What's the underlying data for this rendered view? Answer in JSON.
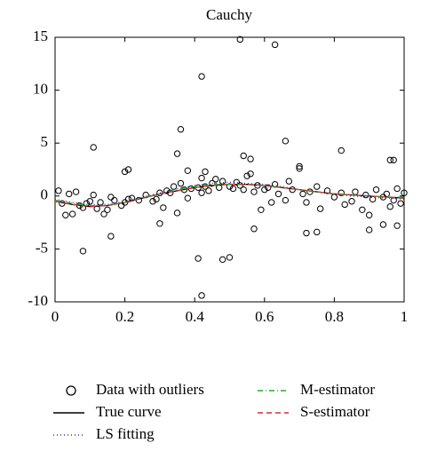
{
  "chart_data": {
    "type": "scatter",
    "title": "Cauchy",
    "xlim": [
      0,
      1
    ],
    "xticks": [
      0,
      0.2,
      0.4,
      0.6,
      0.8,
      1
    ],
    "ylim": [
      -10,
      15
    ],
    "yticks": [
      -10,
      -5,
      0,
      5,
      10,
      15
    ],
    "series": [
      {
        "name": "Data with outliers",
        "kind": "points",
        "color": "#000000",
        "x": [
          0.01,
          0.02,
          0.03,
          0.04,
          0.05,
          0.06,
          0.07,
          0.08,
          0.09,
          0.1,
          0.11,
          0.12,
          0.13,
          0.14,
          0.15,
          0.16,
          0.17,
          0.19,
          0.2,
          0.21,
          0.22,
          0.24,
          0.26,
          0.28,
          0.29,
          0.3,
          0.31,
          0.32,
          0.33,
          0.34,
          0.35,
          0.36,
          0.37,
          0.38,
          0.39,
          0.41,
          0.42,
          0.42,
          0.43,
          0.44,
          0.45,
          0.46,
          0.47,
          0.48,
          0.5,
          0.51,
          0.52,
          0.53,
          0.54,
          0.55,
          0.56,
          0.57,
          0.58,
          0.59,
          0.6,
          0.61,
          0.62,
          0.63,
          0.64,
          0.66,
          0.67,
          0.68,
          0.7,
          0.71,
          0.72,
          0.73,
          0.75,
          0.76,
          0.78,
          0.8,
          0.82,
          0.83,
          0.85,
          0.86,
          0.88,
          0.89,
          0.9,
          0.91,
          0.92,
          0.94,
          0.95,
          0.96,
          0.97,
          0.98,
          0.99,
          1.0,
          0.08,
          0.11,
          0.16,
          0.2,
          0.21,
          0.3,
          0.35,
          0.36,
          0.38,
          0.41,
          0.42,
          0.42,
          0.43,
          0.48,
          0.5,
          0.53,
          0.54,
          0.56,
          0.57,
          0.63,
          0.66,
          0.7,
          0.72,
          0.75,
          0.82,
          0.9,
          0.94,
          0.96,
          0.97,
          0.98
        ],
        "values": [
          0.5,
          -0.7,
          -1.8,
          0.2,
          -1.7,
          0.4,
          -0.9,
          -1.1,
          -0.7,
          -0.5,
          0.1,
          -1.2,
          -0.6,
          -1.7,
          -1.3,
          -0.1,
          -0.4,
          -0.9,
          -0.6,
          -0.3,
          -0.2,
          -0.4,
          0.1,
          -0.5,
          -0.3,
          0.3,
          -1.1,
          0.5,
          0.3,
          0.9,
          -1.6,
          1.2,
          0.6,
          -0.2,
          0.7,
          0.8,
          1.7,
          0.3,
          0.9,
          0.5,
          1.2,
          1.6,
          0.8,
          1.4,
          0.9,
          0.7,
          1.3,
          1.0,
          0.6,
          1.9,
          2.1,
          0.4,
          1.0,
          -1.3,
          0.6,
          0.8,
          -0.6,
          1.1,
          0.2,
          -0.4,
          1.4,
          0.6,
          2.6,
          0.2,
          -0.6,
          0.4,
          0.9,
          -1.2,
          0.5,
          -0.1,
          0.3,
          -0.8,
          -0.5,
          0.4,
          -1.3,
          0.1,
          -1.8,
          -0.3,
          0.6,
          -0.1,
          0.2,
          -1.0,
          -0.4,
          0.7,
          -0.7,
          0.3,
          -5.2,
          4.6,
          -3.8,
          2.3,
          2.5,
          -2.6,
          4.0,
          6.3,
          2.4,
          -5.9,
          11.3,
          -9.4,
          2.3,
          -6.0,
          -5.8,
          14.8,
          3.8,
          3.5,
          -3.1,
          14.3,
          5.2,
          2.8,
          -3.5,
          -3.4,
          4.3,
          -3.2,
          -2.7,
          3.4,
          3.4,
          -2.8
        ]
      },
      {
        "name": "True curve",
        "kind": "line",
        "color": "#000000",
        "dash": "",
        "x": [
          0,
          0.05,
          0.1,
          0.15,
          0.2,
          0.25,
          0.3,
          0.35,
          0.4,
          0.45,
          0.5,
          0.55,
          0.6,
          0.65,
          0.7,
          0.75,
          0.8,
          0.85,
          0.9,
          0.95,
          1
        ],
        "values": [
          -0.5,
          -0.8,
          -1.0,
          -0.9,
          -0.6,
          -0.2,
          0.2,
          0.5,
          0.8,
          1.0,
          1.1,
          1.1,
          1.0,
          0.8,
          0.6,
          0.4,
          0.2,
          0.1,
          0.0,
          -0.1,
          -0.2
        ]
      },
      {
        "name": "LS fitting",
        "kind": "line",
        "color": "#3030c0",
        "dash": "1,3",
        "x": [
          0,
          0.05,
          0.1,
          0.15,
          0.2,
          0.25,
          0.3,
          0.35,
          0.4,
          0.45,
          0.5,
          0.55,
          0.6,
          0.65,
          0.7,
          0.75,
          0.8,
          0.85,
          0.9,
          0.95,
          1
        ],
        "values": [
          -0.3,
          -0.6,
          -0.8,
          -0.8,
          -0.5,
          -0.1,
          0.3,
          0.7,
          1.0,
          1.2,
          1.3,
          1.2,
          1.1,
          0.9,
          0.6,
          0.4,
          0.2,
          0.0,
          -0.1,
          -0.2,
          -0.3
        ]
      },
      {
        "name": "M-estimator",
        "kind": "line",
        "color": "#20b020",
        "dash": "6,3,1,3",
        "x": [
          0,
          0.05,
          0.1,
          0.15,
          0.2,
          0.25,
          0.3,
          0.35,
          0.4,
          0.45,
          0.5,
          0.55,
          0.6,
          0.65,
          0.7,
          0.75,
          0.8,
          0.85,
          0.9,
          0.95,
          1
        ],
        "values": [
          -0.4,
          -0.7,
          -0.9,
          -0.9,
          -0.6,
          -0.2,
          0.2,
          0.6,
          0.9,
          1.1,
          1.1,
          1.1,
          1.0,
          0.8,
          0.6,
          0.4,
          0.2,
          0.1,
          0.0,
          -0.1,
          -0.1
        ]
      },
      {
        "name": "S-estimator",
        "kind": "line",
        "color": "#d03030",
        "dash": "6,4",
        "x": [
          0,
          0.05,
          0.1,
          0.15,
          0.2,
          0.25,
          0.3,
          0.35,
          0.4,
          0.45,
          0.5,
          0.55,
          0.6,
          0.65,
          0.7,
          0.75,
          0.8,
          0.85,
          0.9,
          0.95,
          1
        ],
        "values": [
          -0.5,
          -0.8,
          -1.0,
          -0.9,
          -0.6,
          -0.2,
          0.2,
          0.5,
          0.8,
          1.0,
          1.1,
          1.1,
          1.0,
          0.8,
          0.6,
          0.4,
          0.2,
          0.1,
          0.0,
          -0.1,
          -0.2
        ]
      }
    ]
  }
}
